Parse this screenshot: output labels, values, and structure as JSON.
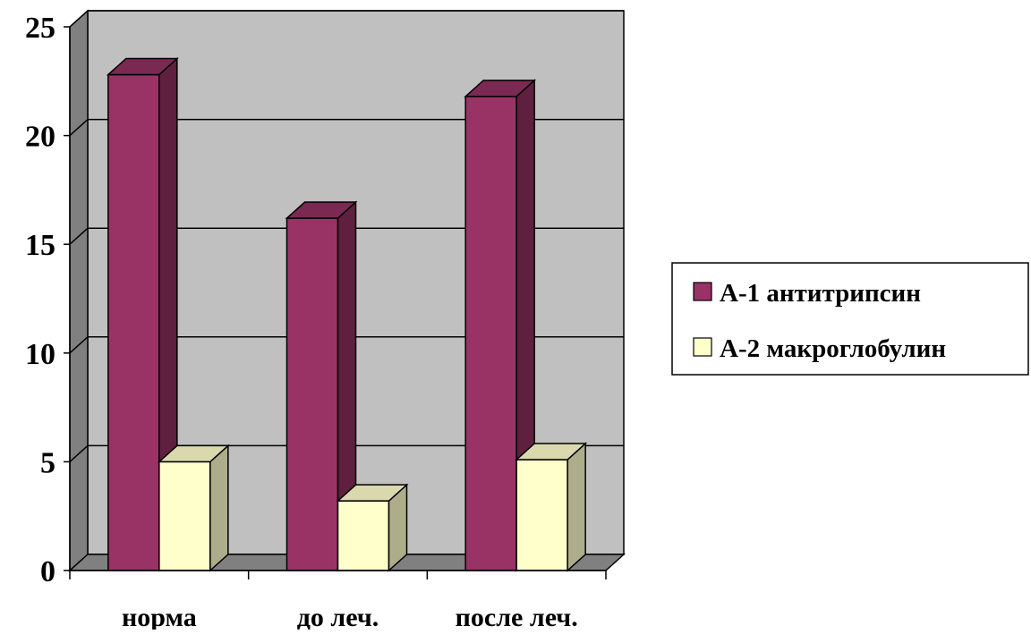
{
  "chart_data": {
    "type": "bar",
    "style": "3d-clustered-column",
    "categories": [
      "норма",
      "до леч.",
      "после леч."
    ],
    "series": [
      {
        "name": "А-1 антитрипсин",
        "values": [
          22.8,
          16.2,
          21.8
        ],
        "color": "#993366"
      },
      {
        "name": "А-2 макроглобулин",
        "values": [
          5.0,
          3.2,
          5.1
        ],
        "color": "#FFFFCC"
      }
    ],
    "yticks": [
      "0",
      "5",
      "10",
      "15",
      "20",
      "25"
    ],
    "ylim": [
      0,
      25
    ],
    "grid": true,
    "legend_position": "right",
    "wall_color": "#C0C0C0"
  }
}
